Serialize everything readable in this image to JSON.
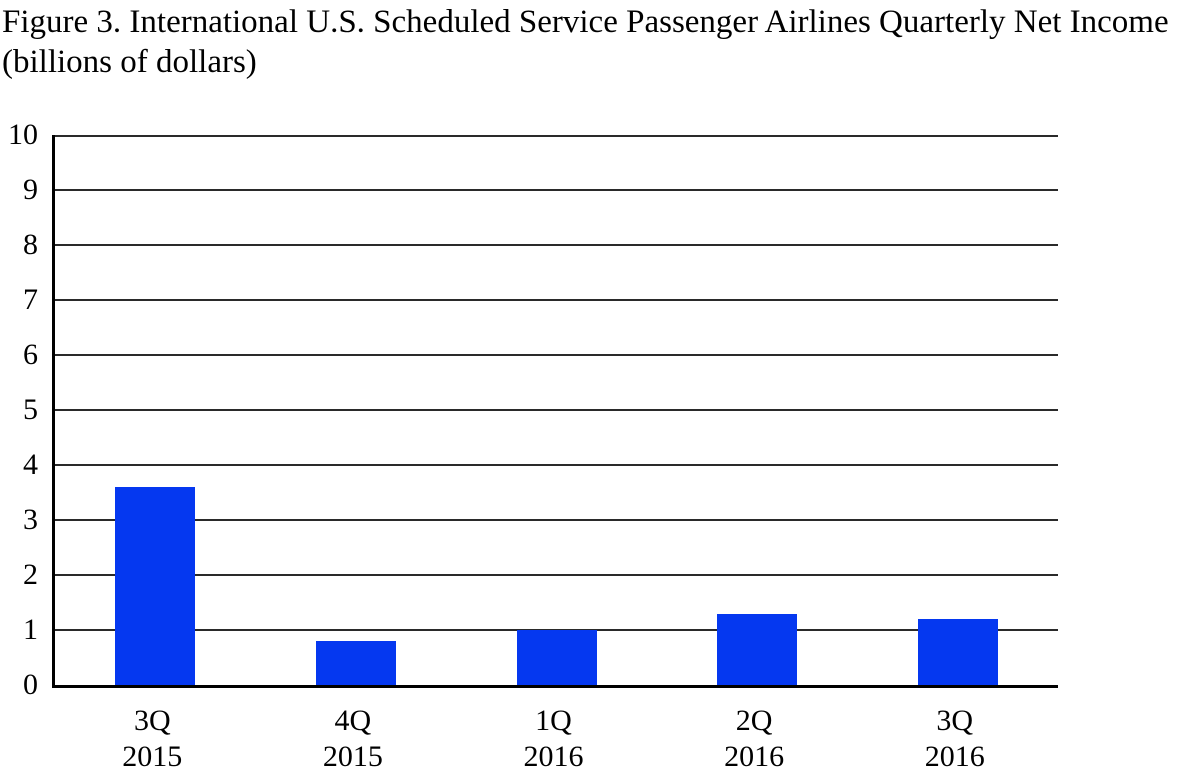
{
  "figure": {
    "title": "Figure 3. International U.S. Scheduled Service Passenger Airlines Quarterly Net Income",
    "subtitle": "(billions of dollars)"
  },
  "chart_data": {
    "type": "bar",
    "title": "Figure 3. International U.S. Scheduled Service Passenger Airlines Quarterly Net Income (billions of dollars)",
    "categories": [
      "3Q 2015",
      "4Q 2015",
      "1Q 2016",
      "2Q 2016",
      "3Q 2016"
    ],
    "values": [
      3.6,
      0.8,
      1.0,
      1.3,
      1.2
    ],
    "xlabel": "",
    "ylabel": "",
    "ylim": [
      0,
      10
    ],
    "yticks": [
      0,
      1,
      2,
      3,
      4,
      5,
      6,
      7,
      8,
      9,
      10
    ],
    "grid": true,
    "legend": "none",
    "bar_color": "#0538f0",
    "gridline_color": "#2a2a2a",
    "axis_color": "#000000"
  }
}
